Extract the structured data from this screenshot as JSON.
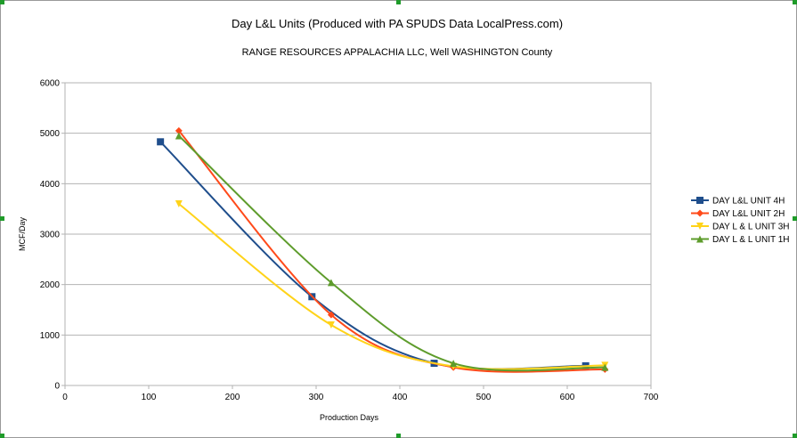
{
  "chart_data": {
    "type": "line",
    "title": "Day L&L Units (Produced with PA SPUDS Data LocalPress.com)",
    "subtitle": "RANGE RESOURCES APPALACHIA LLC, Well  WASHINGTON County",
    "xlabel": "Production Days",
    "ylabel": "MCF/Day",
    "xlim": [
      0,
      700
    ],
    "ylim": [
      0,
      6000
    ],
    "x_ticks": [
      "0",
      "100",
      "200",
      "300",
      "400",
      "500",
      "600",
      "700"
    ],
    "y_ticks": [
      "0",
      "1000",
      "2000",
      "3000",
      "4000",
      "5000",
      "6000"
    ],
    "grid": "horizontal",
    "legend_position": "right",
    "series": [
      {
        "name": "DAY L&L UNIT 4H",
        "color": "#1f4e8c",
        "marker": "square",
        "points": [
          [
            114,
            4830
          ],
          [
            295,
            1760
          ],
          [
            441,
            440
          ],
          [
            622,
            390
          ]
        ]
      },
      {
        "name": "DAY L&L UNIT 2H",
        "color": "#ff4a1a",
        "marker": "diamond",
        "points": [
          [
            136,
            5050
          ],
          [
            318,
            1400
          ],
          [
            464,
            360
          ],
          [
            645,
            320
          ]
        ]
      },
      {
        "name": "DAY L & L UNIT 3H",
        "color": "#ffd319",
        "marker": "triangle-down",
        "points": [
          [
            136,
            3600
          ],
          [
            318,
            1200
          ],
          [
            464,
            380
          ],
          [
            645,
            400
          ]
        ]
      },
      {
        "name": "DAY L & L UNIT 1H",
        "color": "#5e9c2c",
        "marker": "triangle-up",
        "points": [
          [
            136,
            4950
          ],
          [
            318,
            2040
          ],
          [
            464,
            440
          ],
          [
            645,
            360
          ]
        ]
      }
    ]
  }
}
